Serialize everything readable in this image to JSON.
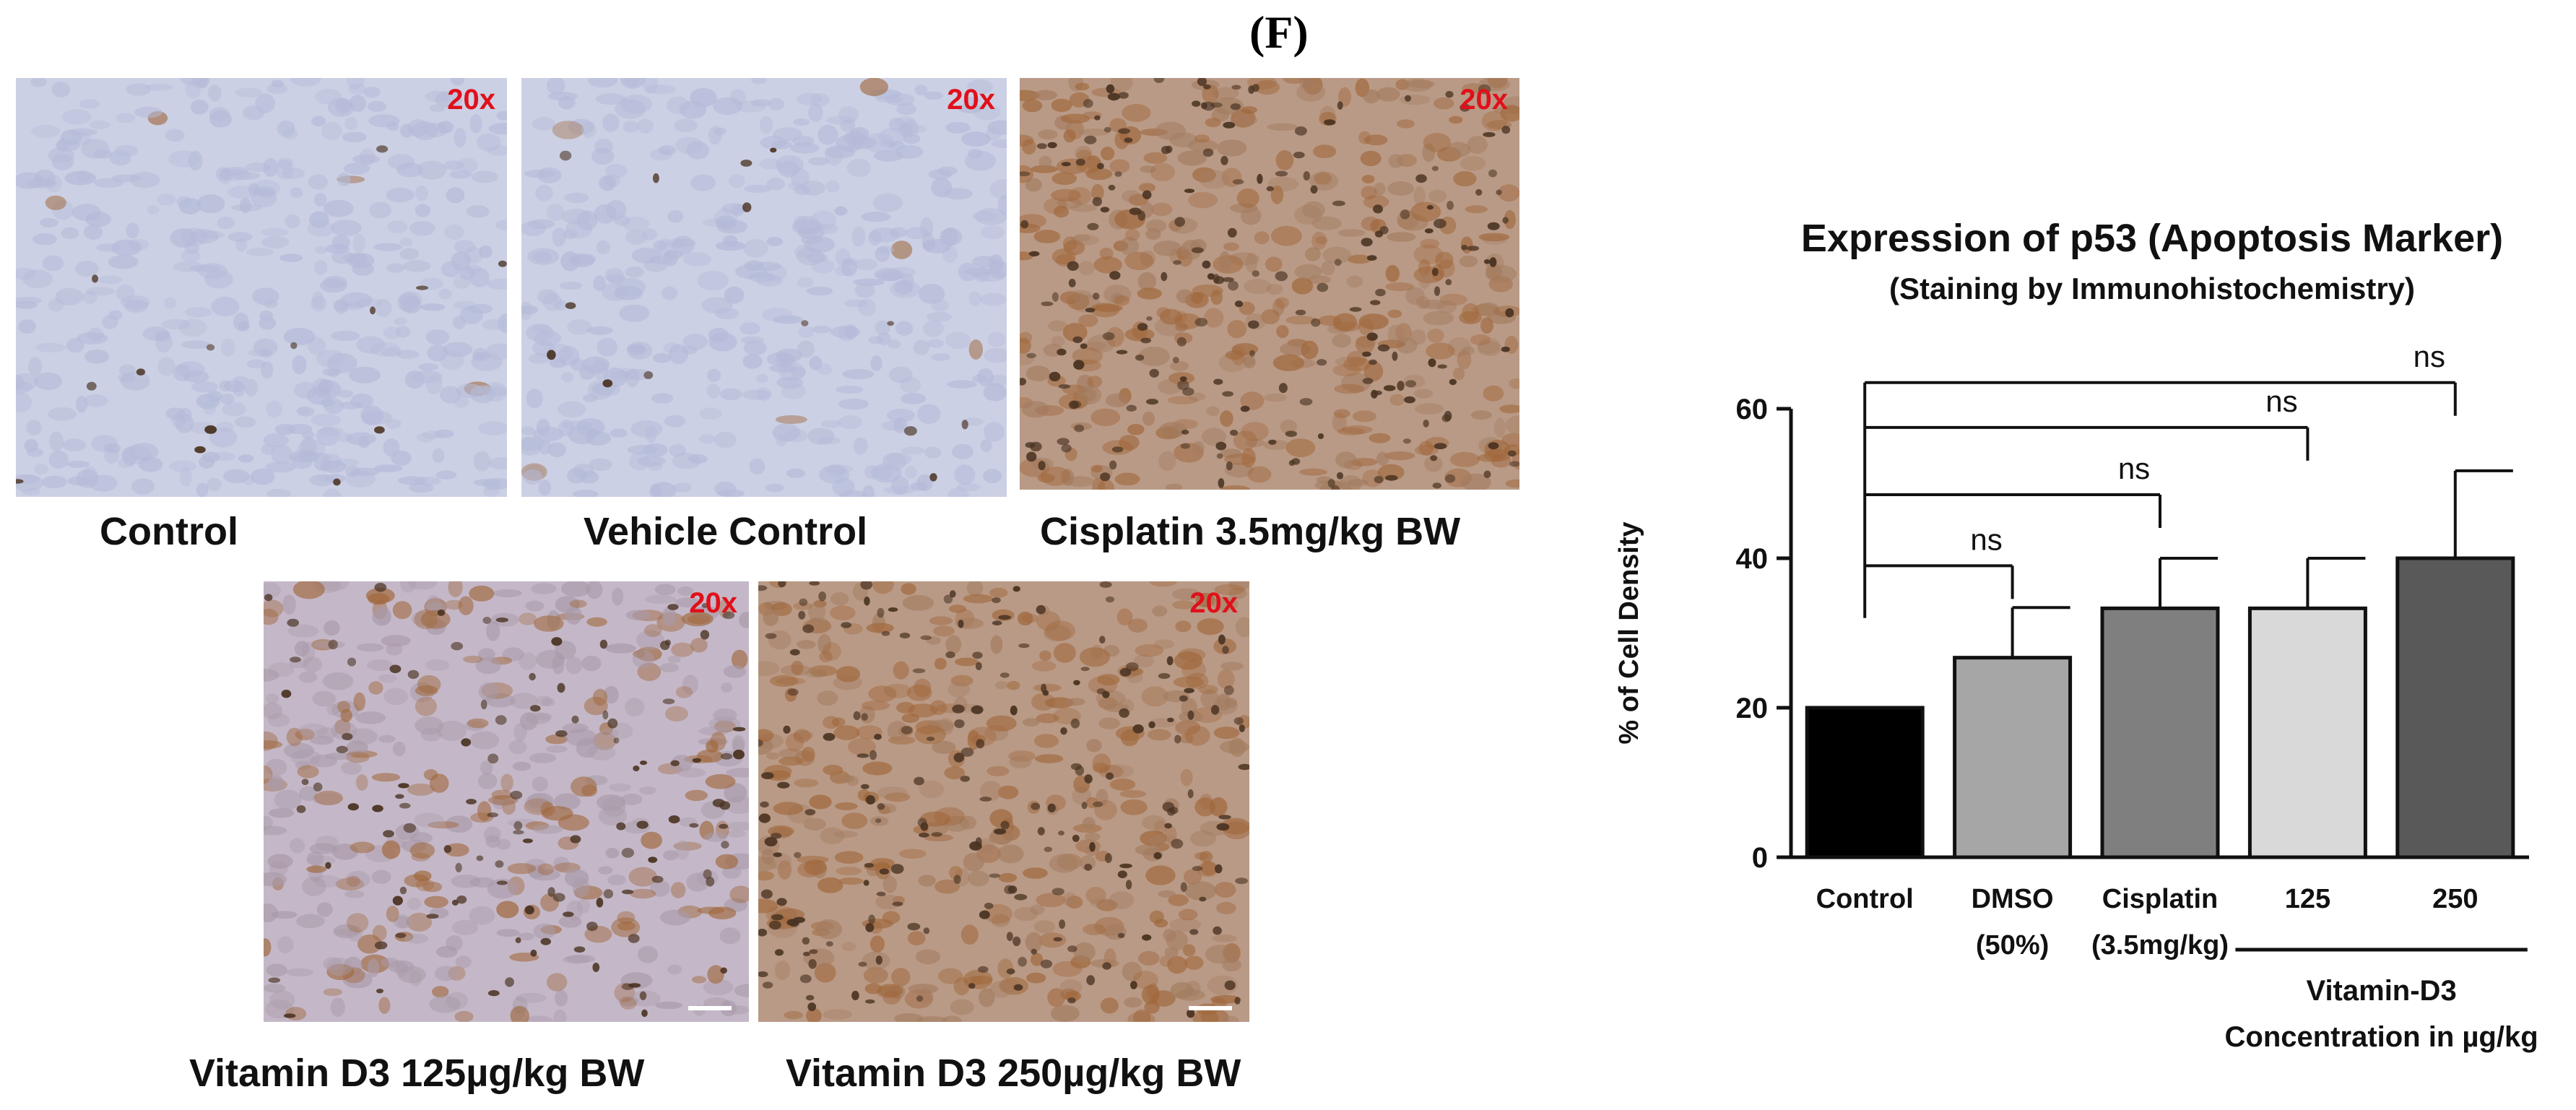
{
  "panel_label": "(F)",
  "micrographs": [
    {
      "magnification": "20x",
      "caption": "Control",
      "stain": "light"
    },
    {
      "magnification": "20x",
      "caption": "Vehicle Control",
      "stain": "light"
    },
    {
      "magnification": "20x",
      "caption": "Cisplatin 3.5mg/kg BW",
      "stain": "heavy"
    },
    {
      "magnification": "20x",
      "caption": "Vitamin D3 125µg/kg BW",
      "stain": "medium"
    },
    {
      "magnification": "20x",
      "caption": "Vitamin D3 250µg/kg BW",
      "stain": "heavy"
    }
  ],
  "colors": {
    "magnification_text": "#e0101a",
    "blue_tissue": "#c9cde3",
    "brown_stain": "#a0673b",
    "nuclei": "#4a3322"
  },
  "chart_data": {
    "type": "bar",
    "title": "Expression of p53 (Apoptosis Marker)",
    "subtitle": "(Staining by Immunohistochemistry)",
    "ylabel": "% of Cell Density",
    "ylim": [
      0,
      60
    ],
    "yticks": [
      0,
      20,
      40,
      60
    ],
    "categories": [
      {
        "line1": "Control",
        "line2": ""
      },
      {
        "line1": "DMSO",
        "line2": "(50%)"
      },
      {
        "line1": "Cisplatin",
        "line2": "(3.5mg/kg)"
      },
      {
        "line1": "125",
        "line2": ""
      },
      {
        "line1": "250",
        "line2": ""
      }
    ],
    "values": [
      20,
      26.7,
      33.3,
      33.3,
      40.0
    ],
    "errors": [
      0,
      6.7,
      6.7,
      6.7,
      11.7
    ],
    "bar_colors": [
      "#000000",
      "#a6a6a6",
      "#7f7f7f",
      "#d9d9d9",
      "#595959"
    ],
    "group_label": {
      "line1": "Vitamin-D3",
      "line2": "Concentration in µg/kg",
      "spans": [
        3,
        4
      ]
    },
    "comparisons": [
      {
        "from": 0,
        "to": 1,
        "label": "ns",
        "level": 39
      },
      {
        "from": 0,
        "to": 2,
        "label": "ns",
        "level": 48.5
      },
      {
        "from": 0,
        "to": 3,
        "label": "ns",
        "level": 57.5
      },
      {
        "from": 0,
        "to": 4,
        "label": "ns",
        "level": 63.5
      }
    ]
  }
}
